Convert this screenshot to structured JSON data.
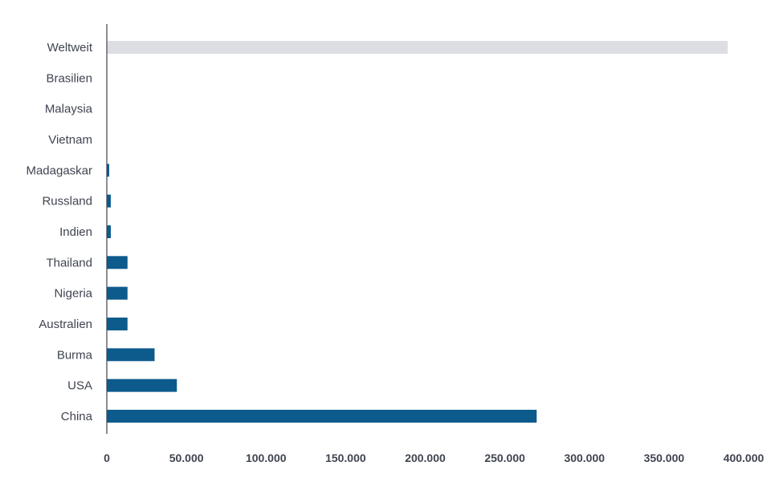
{
  "chart_data": {
    "type": "bar",
    "orientation": "horizontal",
    "title": "",
    "xlabel": "",
    "ylabel": "",
    "categories": [
      "Weltweit",
      "Brasilien",
      "Malaysia",
      "Vietnam",
      "Madagaskar",
      "Russland",
      "Indien",
      "Thailand",
      "Nigeria",
      "Australien",
      "Burma",
      "USA",
      "China"
    ],
    "values": [
      390000,
      0,
      0,
      0,
      1500,
      2500,
      2500,
      13000,
      13000,
      13000,
      30000,
      44000,
      270000
    ],
    "highlight_colors": {
      "Weltweit": "#dddee3"
    },
    "bar_color": "#0d5a8c",
    "xlim": [
      0,
      400000
    ],
    "xticks": [
      0,
      50000,
      100000,
      150000,
      200000,
      250000,
      300000,
      350000,
      400000
    ],
    "xtick_labels": [
      "0",
      "50.000",
      "100.000",
      "150.000",
      "200.000",
      "250.000",
      "300.000",
      "350.000",
      "400.000"
    ],
    "grid": false
  }
}
